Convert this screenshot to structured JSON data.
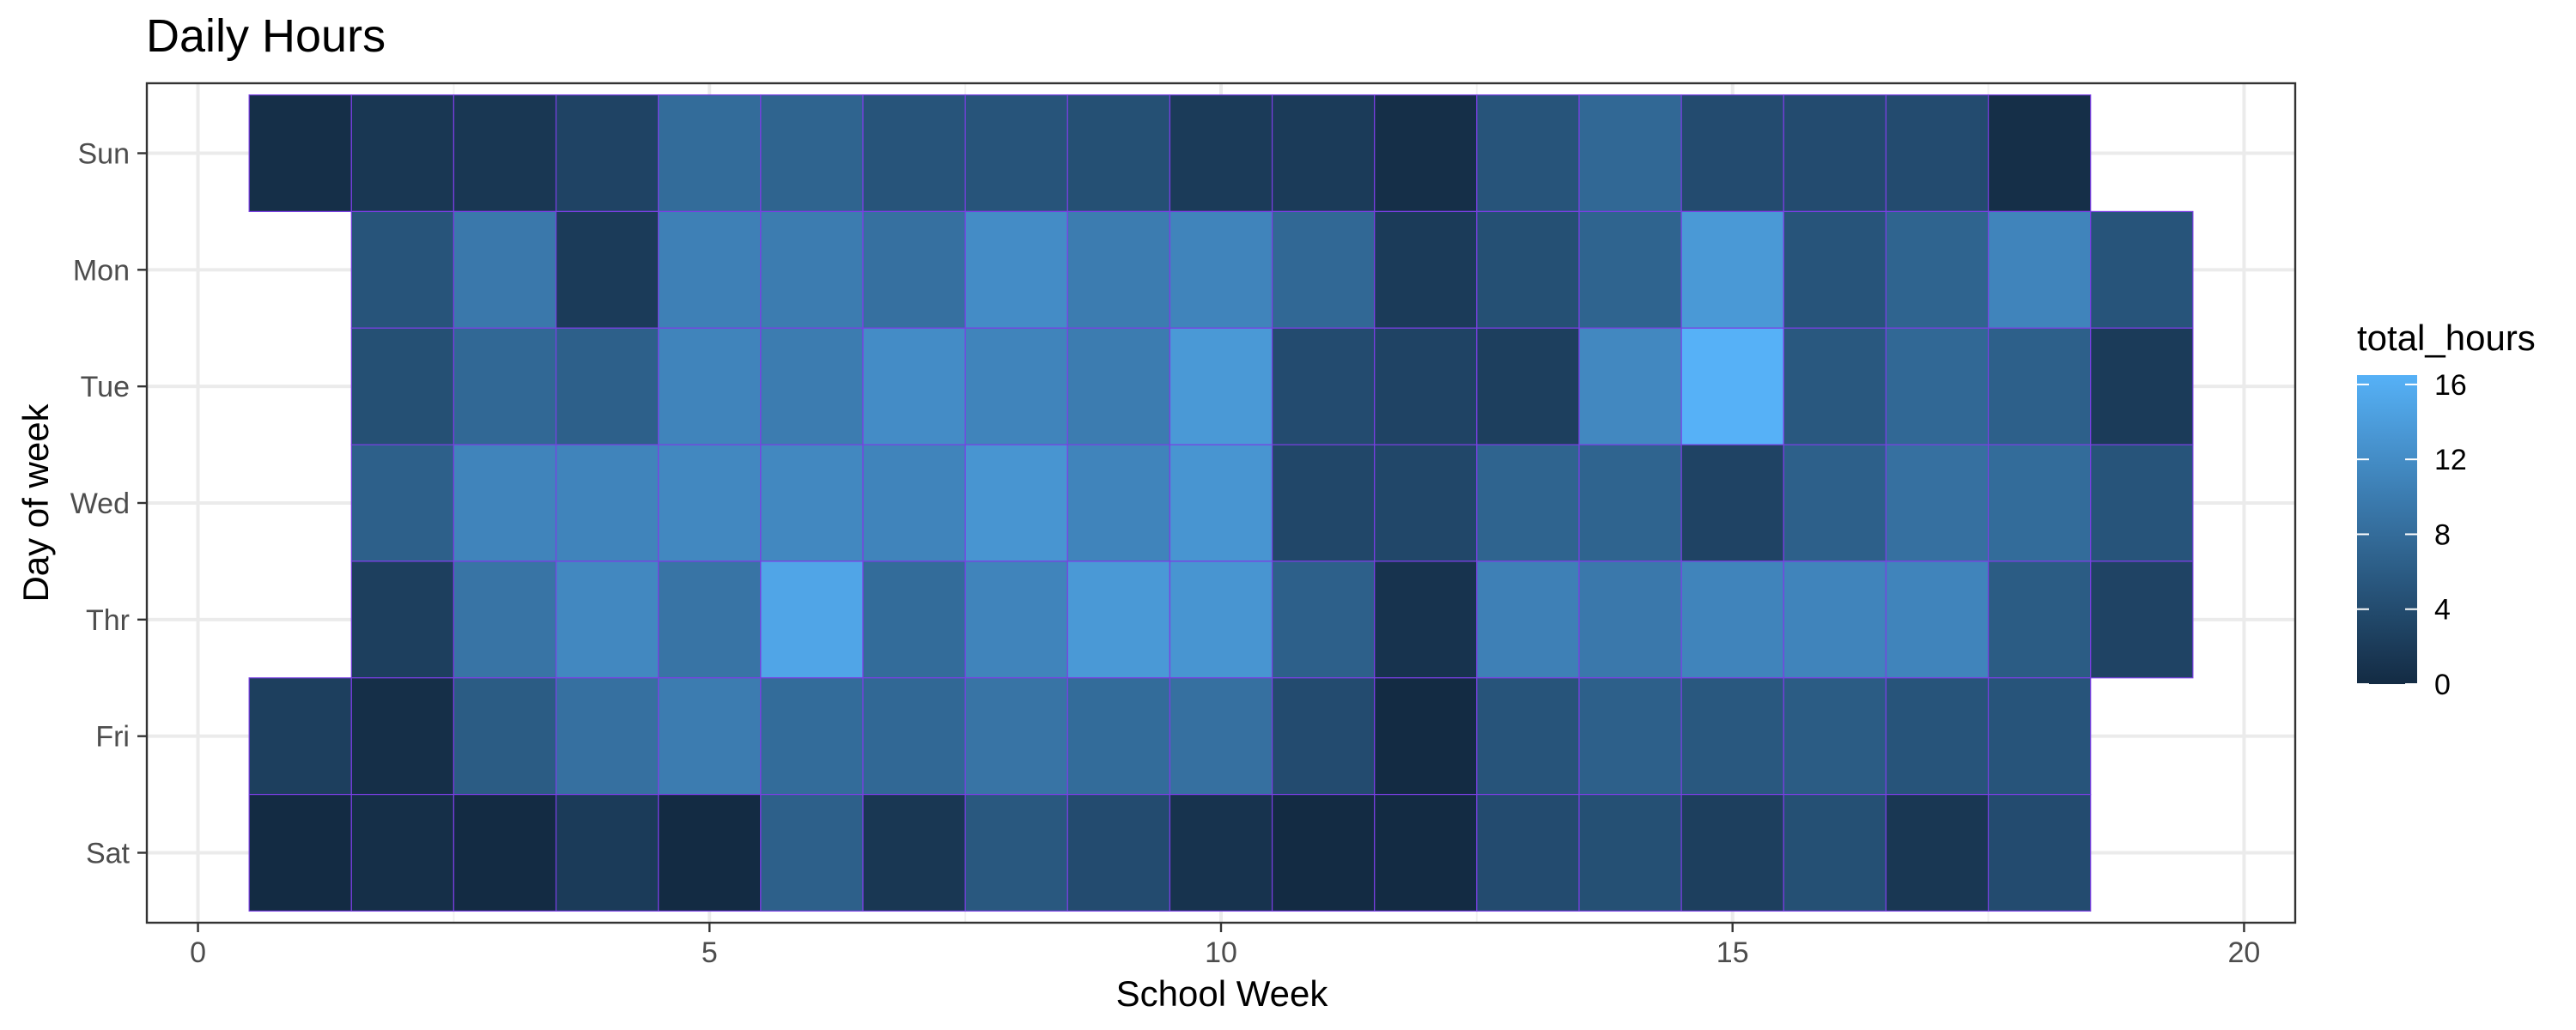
{
  "chart_data": {
    "type": "heatmap",
    "title": "Daily Hours",
    "xlabel": "School Week",
    "ylabel": "Day of week",
    "xlim": [
      -0.5,
      20.5
    ],
    "x_ticks": [
      0,
      5,
      10,
      15,
      20
    ],
    "y_categories": [
      "Sun",
      "Mon",
      "Tue",
      "Wed",
      "Thr",
      "Fri",
      "Sat"
    ],
    "grid": true,
    "legend": {
      "title": "total_hours",
      "placement": "right",
      "range": [
        0,
        16.5
      ],
      "ticks": [
        0,
        4,
        8,
        12,
        16
      ],
      "low_color": "#132B43",
      "high_color": "#56B1F7"
    },
    "tile_border_color": "#7B3FE4",
    "weeks": [
      1,
      2,
      3,
      4,
      5,
      6,
      7,
      8,
      9,
      10,
      11,
      12,
      13,
      14,
      15,
      16,
      17,
      18,
      19
    ],
    "rows": {
      "Sun": [
        0.5,
        1.5,
        1.5,
        3,
        8,
        7,
        5,
        5,
        4.5,
        2,
        2,
        0.5,
        5,
        7.5,
        4,
        4,
        4,
        0.5,
        null
      ],
      "Mon": [
        null,
        5,
        9.5,
        2,
        10.5,
        10,
        8.5,
        12,
        10,
        11,
        7.5,
        2,
        4.5,
        7,
        13.5,
        5,
        7,
        11,
        5
      ],
      "Tue": [
        null,
        4.5,
        7.5,
        6.5,
        11,
        10,
        12,
        11,
        10,
        13.5,
        4,
        3,
        2.5,
        11.5,
        16.5,
        5.5,
        7.5,
        6.5,
        2
      ],
      "Wed": [
        null,
        6.5,
        11,
        11,
        11.5,
        11.5,
        11,
        13,
        11,
        13,
        3.5,
        3.5,
        7,
        7,
        3,
        6.5,
        8.5,
        8,
        5
      ],
      "Thr": [
        null,
        2.5,
        9,
        11.5,
        9,
        15,
        8,
        11,
        13.5,
        13,
        6.5,
        1,
        10.5,
        9.5,
        11,
        11,
        11,
        6,
        3
      ],
      "Fri": [
        2.5,
        0.5,
        6,
        8.5,
        10,
        8,
        7.5,
        9,
        8,
        8.5,
        4,
        0,
        5,
        6.5,
        5.5,
        6,
        5,
        5,
        null
      ],
      "Sat": [
        0,
        0.5,
        0,
        2,
        0,
        6.5,
        1.5,
        5.5,
        4,
        1,
        0,
        0,
        4,
        4.5,
        2.5,
        4.5,
        1.5,
        4,
        null
      ]
    }
  }
}
